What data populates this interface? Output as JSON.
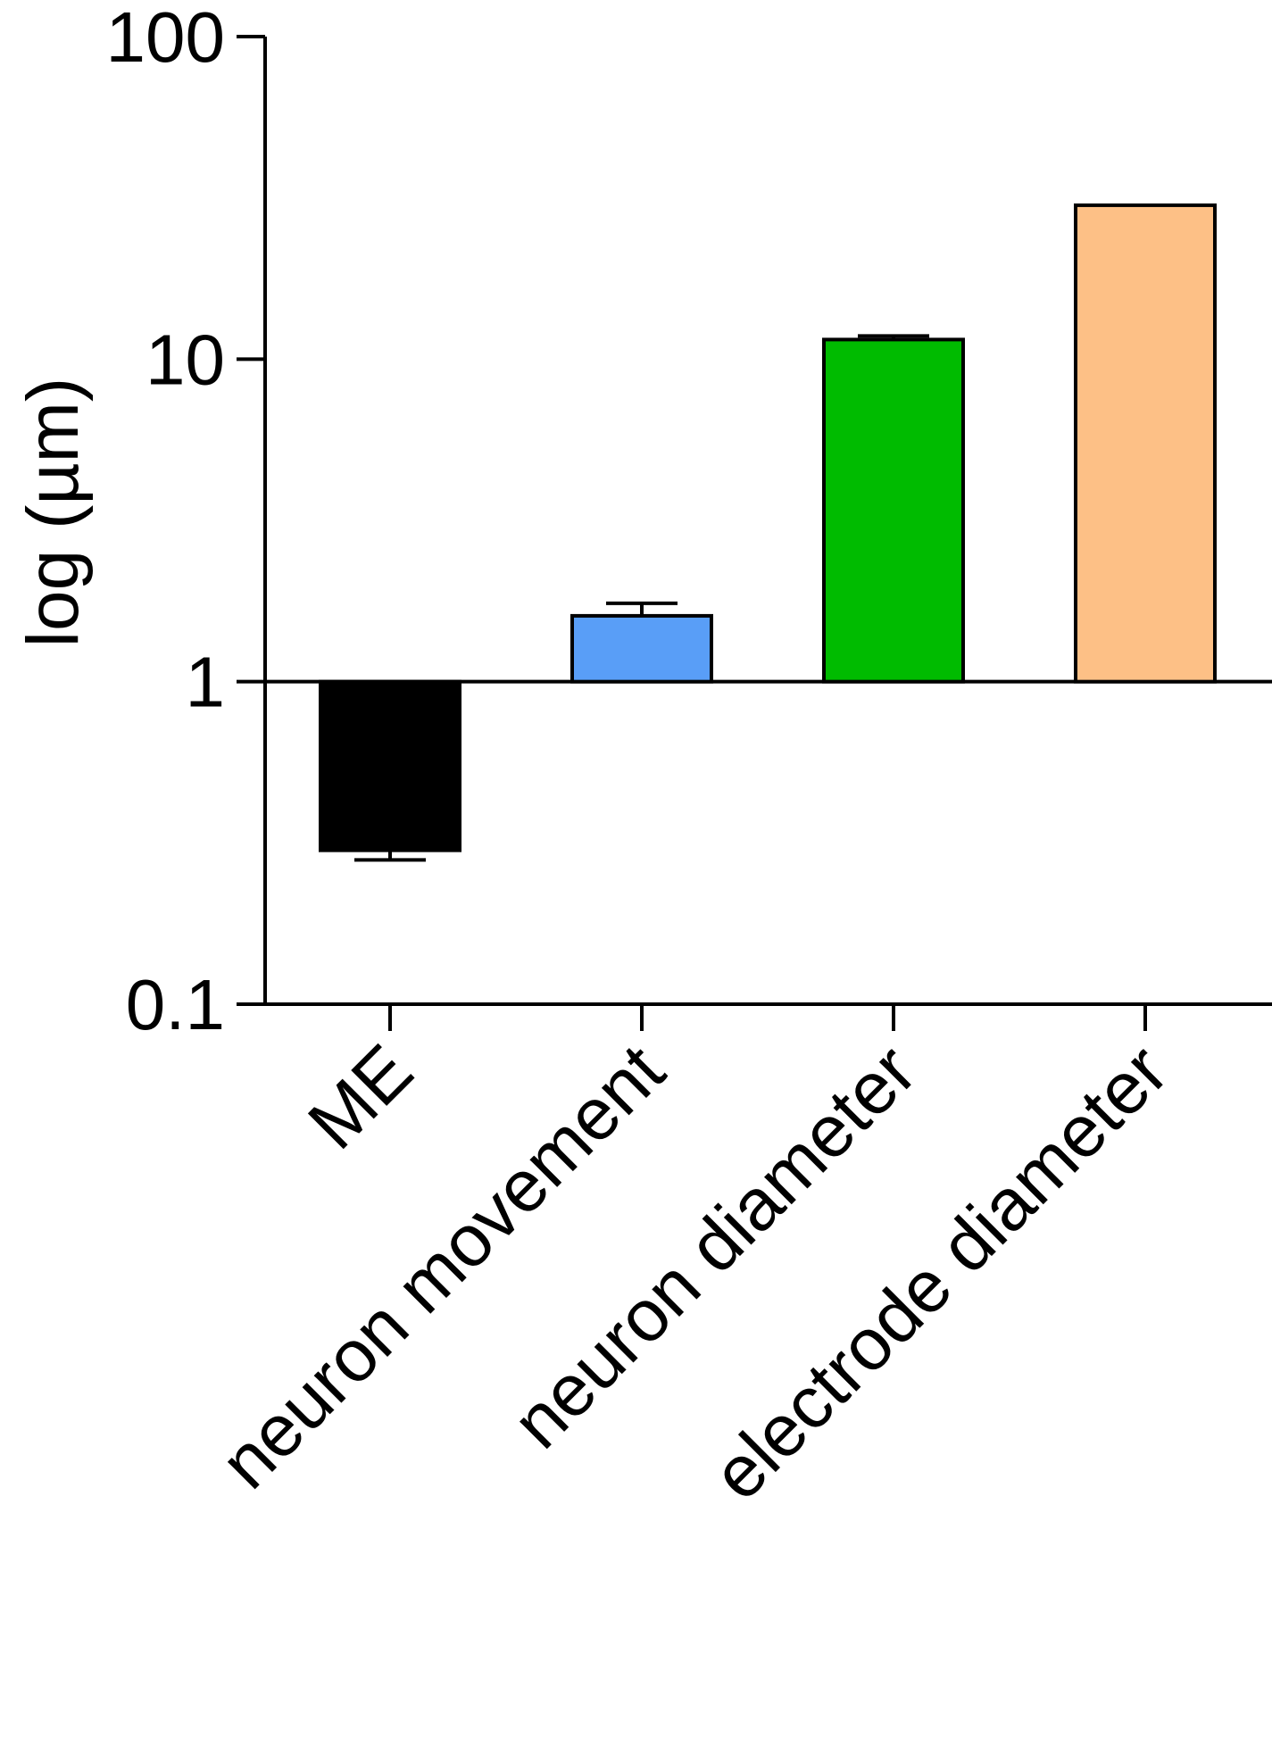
{
  "chart_data": {
    "type": "bar",
    "title": "",
    "xlabel": "",
    "ylabel": "log (µm)",
    "yscale": "log",
    "ylim": [
      0.1,
      100
    ],
    "baseline": 1,
    "yticks": [
      {
        "value": 0.1,
        "label": "0.1"
      },
      {
        "value": 1,
        "label": "1"
      },
      {
        "value": 10,
        "label": "10"
      },
      {
        "value": 100,
        "label": "100"
      }
    ],
    "categories": [
      "ME",
      "neuron movement",
      "neuron diameter",
      "electrode diameter"
    ],
    "values": [
      0.3,
      1.6,
      11.5,
      30
    ],
    "error_bars": [
      0.28,
      1.75,
      11.8,
      null
    ],
    "colors": [
      "#000000",
      "#599ef7",
      "#00bb00",
      "#fdc086"
    ],
    "grid": false,
    "legend": "none"
  }
}
